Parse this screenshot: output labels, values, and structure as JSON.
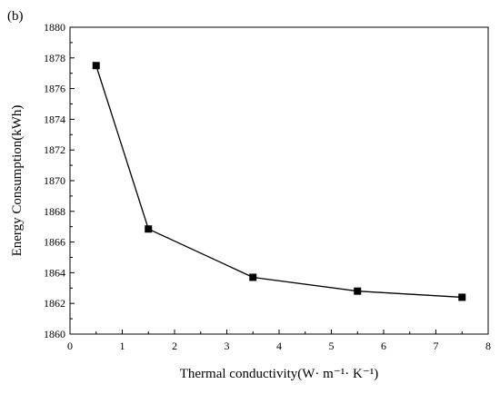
{
  "chart_data": {
    "type": "line",
    "panel_label": "(b)",
    "title": "",
    "xlabel": "Thermal conductivity(W· m⁻¹· K⁻¹)",
    "ylabel": "Energy Consumption(kWh)",
    "xlim": [
      0,
      8
    ],
    "ylim": [
      1860,
      1880
    ],
    "x_ticks": [
      0,
      1,
      2,
      3,
      4,
      5,
      6,
      7,
      8
    ],
    "y_ticks": [
      1860,
      1862,
      1864,
      1866,
      1868,
      1870,
      1872,
      1874,
      1876,
      1878,
      1880
    ],
    "grid": false,
    "legend": "none",
    "marker": "square",
    "series": [
      {
        "x": [
          0.5,
          1.5,
          3.5,
          5.5,
          7.5
        ],
        "y": [
          1877.5,
          1866.85,
          1863.7,
          1862.8,
          1862.4
        ]
      }
    ],
    "line_color": "#000000"
  }
}
